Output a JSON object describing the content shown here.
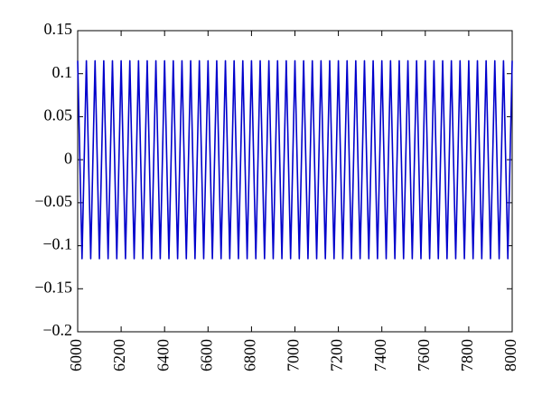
{
  "chart_data": {
    "type": "line",
    "color": "#0000cc",
    "x": [
      6000,
      6020,
      6040,
      6060,
      6080,
      6100,
      6120,
      6140,
      6160,
      6180,
      6200,
      6220,
      6240,
      6260,
      6280,
      6300,
      6320,
      6340,
      6360,
      6380,
      6400,
      6420,
      6440,
      6460,
      6480,
      6500,
      6520,
      6540,
      6560,
      6580,
      6600,
      6620,
      6640,
      6660,
      6680,
      6700,
      6720,
      6740,
      6760,
      6780,
      6800,
      6820,
      6840,
      6860,
      6880,
      6900,
      6920,
      6940,
      6960,
      6980,
      7000,
      7020,
      7040,
      7060,
      7080,
      7100,
      7120,
      7140,
      7160,
      7180,
      7200,
      7220,
      7240,
      7260,
      7280,
      7300,
      7320,
      7340,
      7360,
      7380,
      7400,
      7420,
      7440,
      7460,
      7480,
      7500,
      7520,
      7540,
      7560,
      7580,
      7600,
      7620,
      7640,
      7660,
      7680,
      7700,
      7720,
      7740,
      7760,
      7780,
      7800,
      7820,
      7840,
      7860,
      7880,
      7900,
      7920,
      7940,
      7960,
      7980,
      8000
    ],
    "values": [
      0.115,
      -0.115,
      0.115,
      -0.115,
      0.115,
      -0.115,
      0.115,
      -0.115,
      0.115,
      -0.115,
      0.115,
      -0.115,
      0.115,
      -0.115,
      0.115,
      -0.115,
      0.115,
      -0.115,
      0.115,
      -0.115,
      0.115,
      -0.115,
      0.115,
      -0.115,
      0.115,
      -0.115,
      0.115,
      -0.115,
      0.115,
      -0.115,
      0.115,
      -0.115,
      0.115,
      -0.115,
      0.115,
      -0.115,
      0.115,
      -0.115,
      0.115,
      -0.115,
      0.115,
      -0.115,
      0.115,
      -0.115,
      0.115,
      -0.115,
      0.115,
      -0.115,
      0.115,
      -0.115,
      0.115,
      -0.115,
      0.115,
      -0.115,
      0.115,
      -0.115,
      0.115,
      -0.115,
      0.115,
      -0.115,
      0.115,
      -0.115,
      0.115,
      -0.115,
      0.115,
      -0.115,
      0.115,
      -0.115,
      0.115,
      -0.115,
      0.115,
      -0.115,
      0.115,
      -0.115,
      0.115,
      -0.115,
      0.115,
      -0.115,
      0.115,
      -0.115,
      0.115,
      -0.115,
      0.115,
      -0.115,
      0.115,
      -0.115,
      0.115,
      -0.115,
      0.115,
      -0.115,
      0.115,
      -0.115,
      0.115,
      -0.115,
      0.115,
      -0.115,
      0.115,
      -0.115,
      0.115,
      -0.115,
      0.115
    ],
    "xlim": [
      6000,
      8000
    ],
    "xticks": [
      6000,
      6200,
      6400,
      6600,
      6800,
      7000,
      7200,
      7400,
      7600,
      7800,
      8000
    ],
    "ylim": [
      -0.2,
      0.15
    ],
    "yticks": [
      {
        "value": -0.2,
        "label": "−0.2"
      },
      {
        "value": -0.15,
        "label": "−0.15"
      },
      {
        "value": -0.1,
        "label": "−0.1"
      },
      {
        "value": -0.05,
        "label": "−0.05"
      },
      0,
      0.05,
      0.1,
      0.15
    ],
    "grid": false
  }
}
